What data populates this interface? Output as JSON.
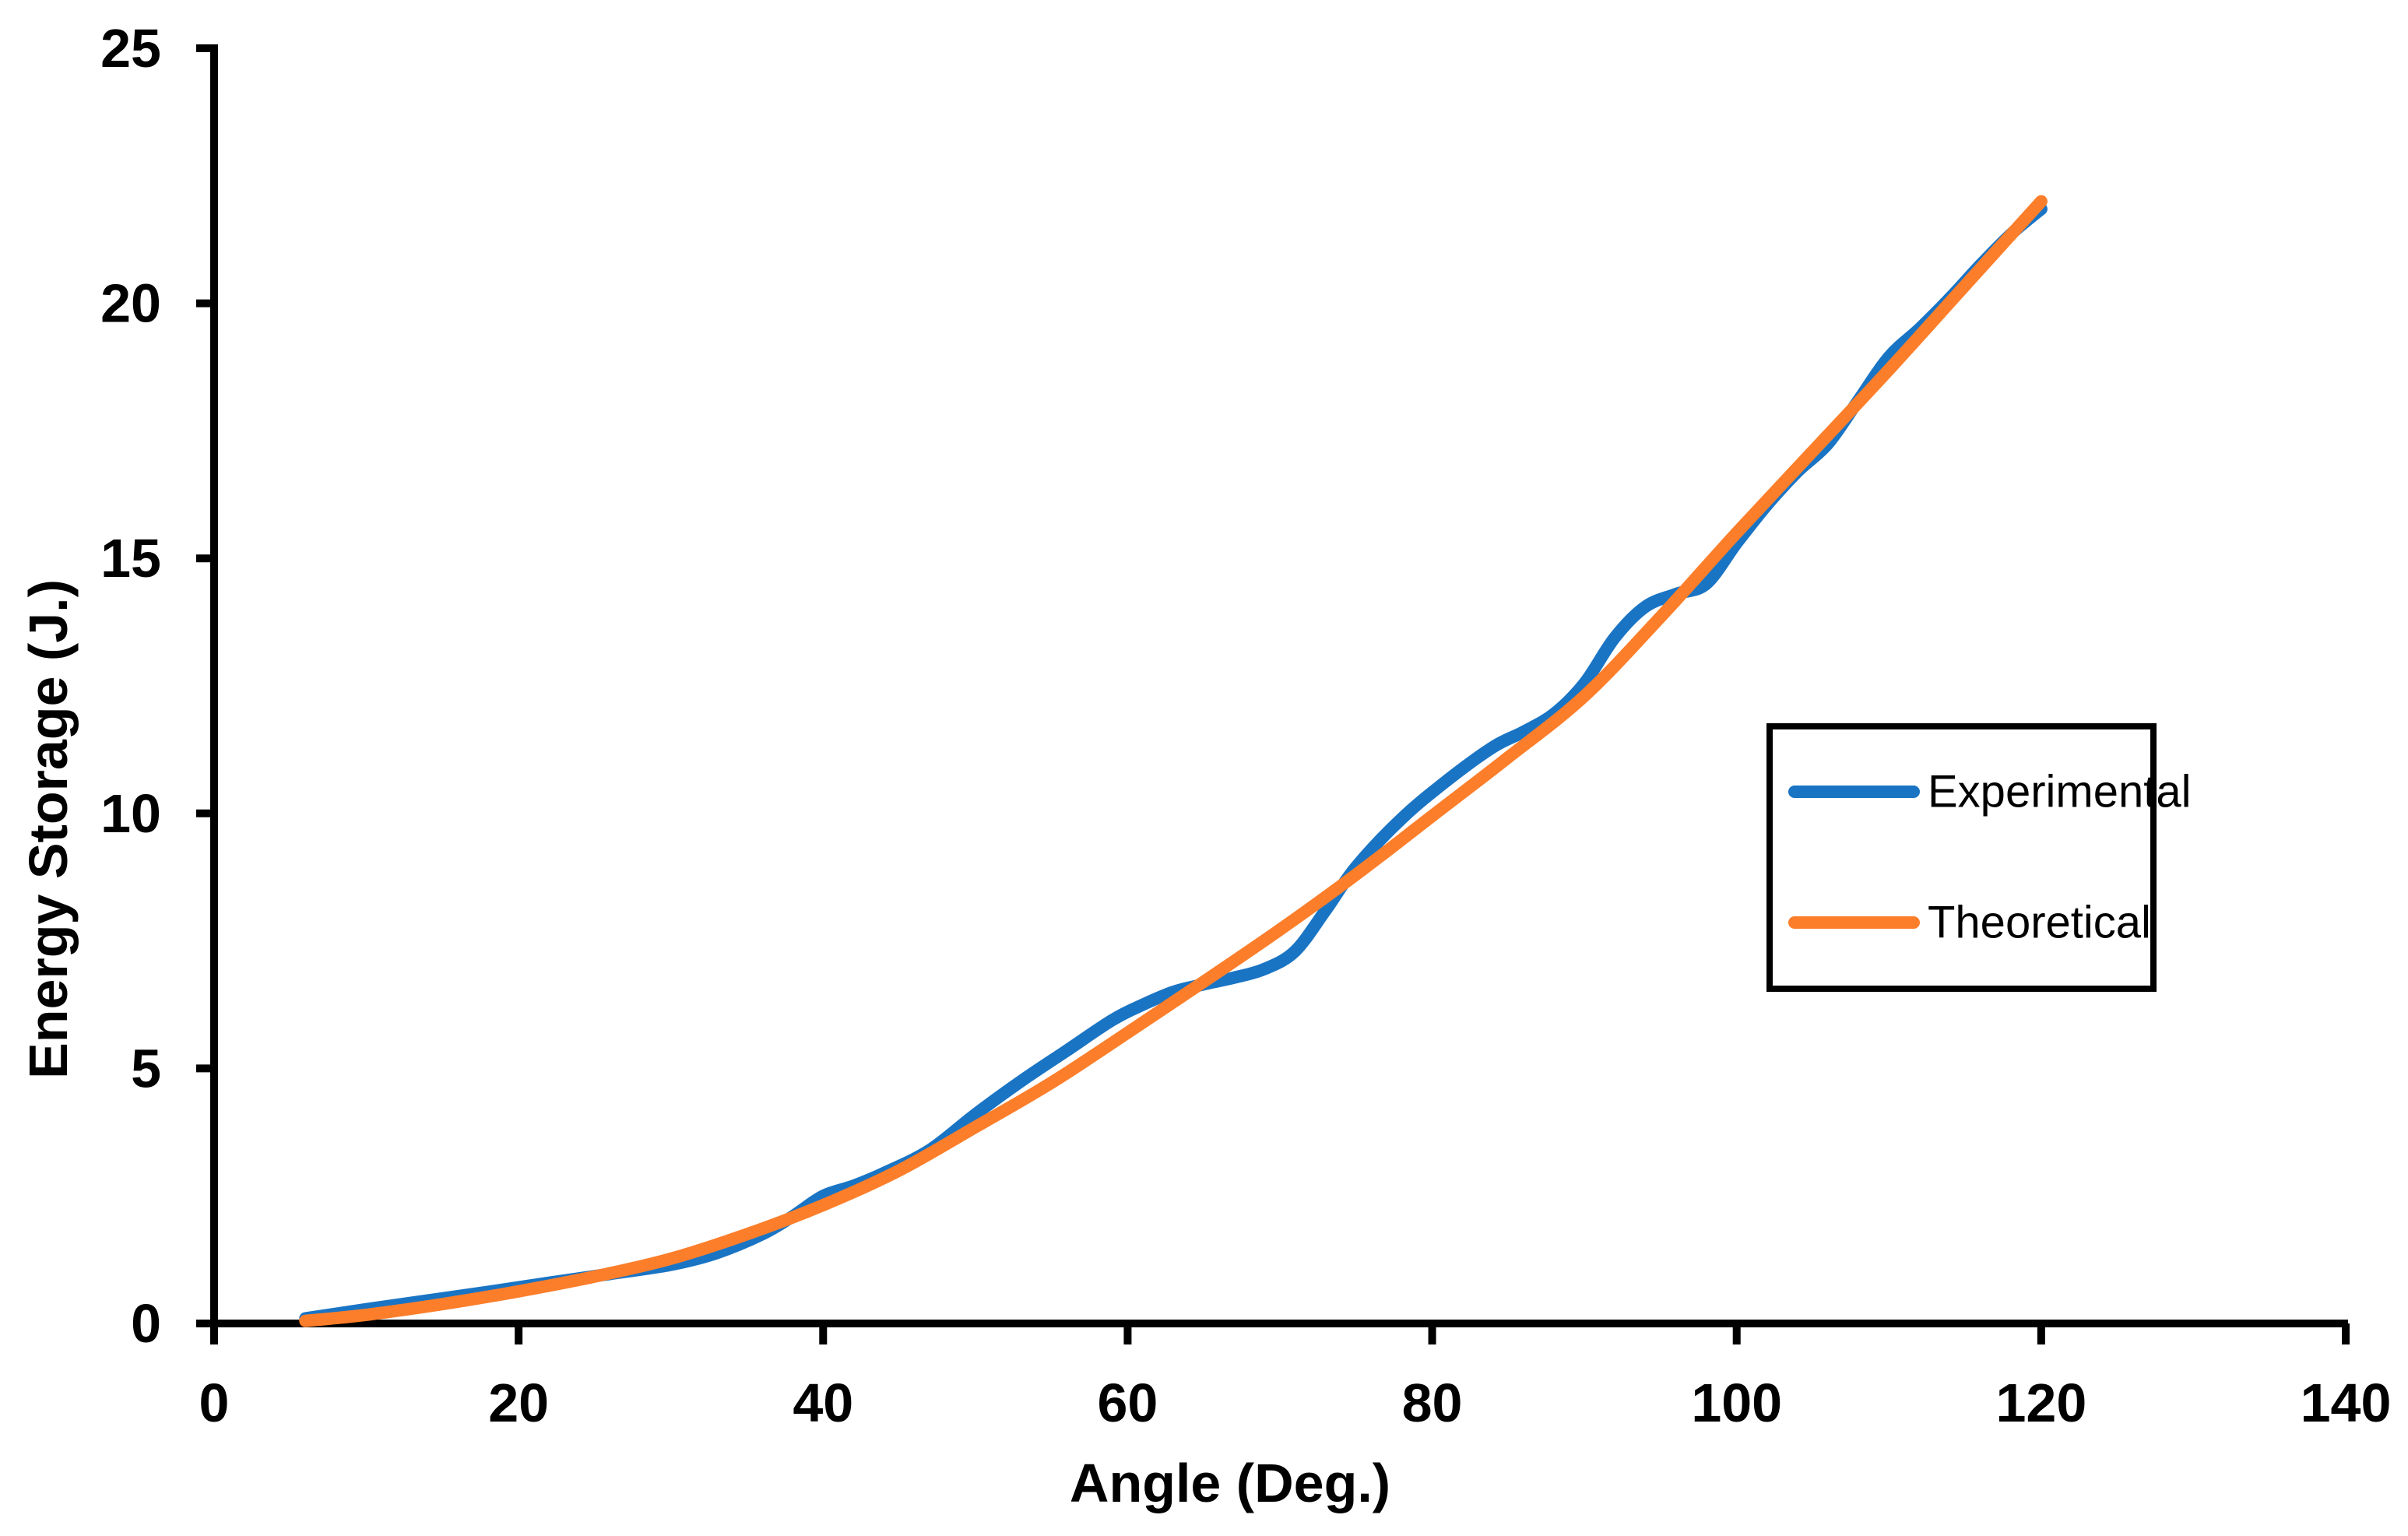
{
  "chart_data": {
    "type": "line",
    "title": "",
    "xlabel": "Angle (Deg.)",
    "ylabel": "Energy Storage (J.)",
    "xlim": [
      0,
      140
    ],
    "ylim": [
      0,
      25
    ],
    "x_ticks": [
      0,
      20,
      40,
      60,
      80,
      100,
      120,
      140
    ],
    "y_ticks": [
      0,
      5,
      10,
      15,
      20,
      25
    ],
    "grid": false,
    "legend_position": "middle-right",
    "axis_color": "#000000",
    "background_color": "#FFFFFF",
    "series": [
      {
        "name": "Experimental",
        "color": "#1A74C4",
        "x": [
          6,
          10,
          14,
          18,
          22,
          26,
          30,
          33,
          36,
          38,
          40,
          42,
          44,
          47,
          50,
          53,
          56,
          59,
          61,
          63,
          65,
          67,
          69,
          71,
          73,
          75,
          78,
          81,
          84,
          86,
          88,
          90,
          92,
          94,
          96,
          98,
          100,
          102,
          104,
          106,
          108,
          110,
          112,
          114,
          116,
          118,
          120
        ],
        "y": [
          0.1,
          0.28,
          0.45,
          0.62,
          0.8,
          0.97,
          1.15,
          1.38,
          1.75,
          2.1,
          2.5,
          2.7,
          2.95,
          3.4,
          4.1,
          4.75,
          5.35,
          5.95,
          6.25,
          6.5,
          6.65,
          6.78,
          6.95,
          7.3,
          8.1,
          8.95,
          9.9,
          10.65,
          11.3,
          11.6,
          11.95,
          12.55,
          13.45,
          14.05,
          14.3,
          14.5,
          15.3,
          16.05,
          16.7,
          17.25,
          18.1,
          18.95,
          19.5,
          20.1,
          20.75,
          21.35,
          21.85
        ]
      },
      {
        "name": "Theoretical",
        "color": "#FC7E2A",
        "x": [
          6,
          10,
          15,
          20,
          25,
          30,
          35,
          40,
          45,
          50,
          55,
          60,
          65,
          70,
          75,
          80,
          85,
          90,
          95,
          100,
          105,
          110,
          115,
          120
        ],
        "y": [
          0.05,
          0.17,
          0.38,
          0.63,
          0.92,
          1.27,
          1.75,
          2.32,
          3.0,
          3.85,
          4.72,
          5.7,
          6.7,
          7.72,
          8.8,
          9.95,
          11.1,
          12.3,
          13.85,
          15.5,
          17.1,
          18.7,
          20.35,
          22.0
        ]
      }
    ]
  }
}
